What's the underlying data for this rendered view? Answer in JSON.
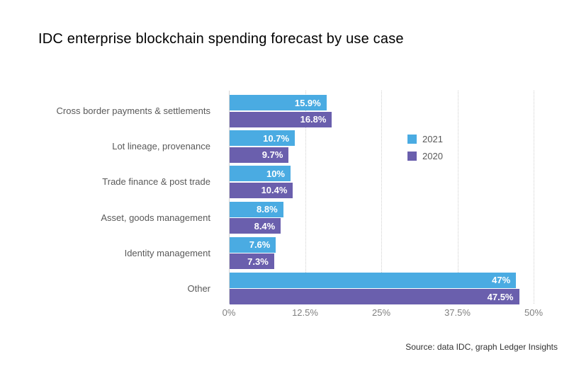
{
  "title": "IDC enterprise blockchain spending forecast by use case",
  "source_note": "Source: data IDC, graph Ledger Insights",
  "colors": {
    "series_2021": "#4aabe2",
    "series_2020": "#6a5fad",
    "gridline": "#cfcfcf",
    "axis_line": "#d4d4d4",
    "category_label": "#595959",
    "tick_label": "#808080",
    "value_label": "#ffffff",
    "title_text": "#000000",
    "source_text": "#333333",
    "background": "#ffffff"
  },
  "chart_data": {
    "type": "bar",
    "orientation": "horizontal",
    "title": "IDC enterprise blockchain spending forecast by use case",
    "xlabel": "",
    "ylabel": "",
    "xlim": [
      0,
      50
    ],
    "grid": "vertical-dotted",
    "legend_position": "middle-right",
    "categories": [
      "Cross border payments & settlements",
      "Lot lineage, provenance",
      "Trade finance & post trade",
      "Asset, goods management",
      "Identity management",
      "Other"
    ],
    "series": [
      {
        "name": "2021",
        "color": "#4aabe2",
        "values": [
          15.9,
          10.7,
          10,
          8.8,
          7.6,
          47
        ]
      },
      {
        "name": "2020",
        "color": "#6a5fad",
        "values": [
          16.8,
          9.7,
          10.4,
          8.4,
          7.3,
          47.5
        ]
      }
    ],
    "value_label_suffix": "%",
    "x_ticks": [
      {
        "label": "0%",
        "value": 0
      },
      {
        "label": "12.5%",
        "value": 12.5
      },
      {
        "label": "25%",
        "value": 25
      },
      {
        "label": "37.5%",
        "value": 37.5
      },
      {
        "label": "50%",
        "value": 50
      }
    ]
  }
}
